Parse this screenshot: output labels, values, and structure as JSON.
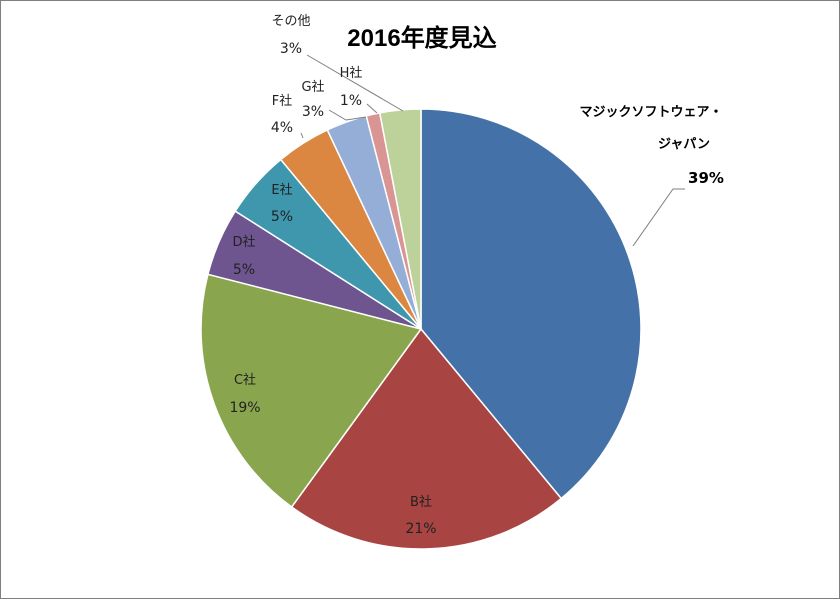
{
  "chart_data": {
    "type": "pie",
    "title": "2016年度見込",
    "slices": [
      {
        "label": "マジックソフトウェア・ジャパン",
        "label_lines": [
          "マジックソフトウェア・",
          "ジャパン"
        ],
        "value": 39,
        "percent_label": "39%",
        "color": "#4472A8"
      },
      {
        "label": "B社",
        "value": 21,
        "percent_label": "21%",
        "color": "#A84442"
      },
      {
        "label": "C社",
        "value": 19,
        "percent_label": "19%",
        "color": "#89A64E"
      },
      {
        "label": "D社",
        "value": 5,
        "percent_label": "5%",
        "color": "#6E558F"
      },
      {
        "label": "E社",
        "value": 5,
        "percent_label": "5%",
        "color": "#3F97AE"
      },
      {
        "label": "F社",
        "value": 4,
        "percent_label": "4%",
        "color": "#DB8641"
      },
      {
        "label": "G社",
        "value": 3,
        "percent_label": "3%",
        "color": "#95AED8"
      },
      {
        "label": "H社",
        "value": 1,
        "percent_label": "1%",
        "color": "#D99593"
      },
      {
        "label": "その他",
        "value": 3,
        "percent_label": "3%",
        "color": "#BDD19B"
      }
    ],
    "start": "12 o'clock",
    "direction": "clockwise"
  }
}
